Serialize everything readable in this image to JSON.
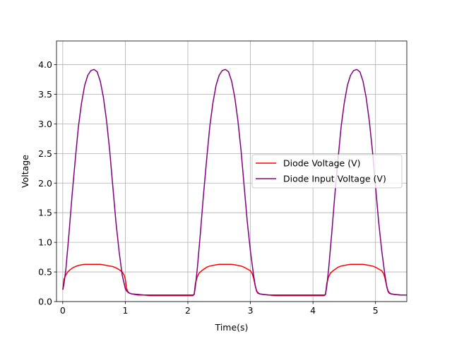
{
  "chart_data": {
    "type": "line",
    "title": "",
    "xlabel": "Time(s)",
    "ylabel": "Voltage",
    "xlim": [
      -0.1,
      5.5
    ],
    "ylim": [
      0.0,
      4.4
    ],
    "grid": true,
    "legend_position": "center-right",
    "x_ticks": [
      0,
      1,
      2,
      3,
      4,
      5
    ],
    "x_tick_labels": [
      "0",
      "1",
      "2",
      "3",
      "4",
      "5"
    ],
    "y_ticks": [
      0.0,
      0.5,
      1.0,
      1.5,
      2.0,
      2.5,
      3.0,
      3.5,
      4.0
    ],
    "y_tick_labels": [
      "0.0",
      "0.5",
      "1.0",
      "1.5",
      "2.0",
      "2.5",
      "3.0",
      "3.5",
      "4.0"
    ],
    "series": [
      {
        "name": "Diode Voltage (V)",
        "color": "#ff0000",
        "x": [
          0.0,
          0.02,
          0.05,
          0.08,
          0.12,
          0.16,
          0.2,
          0.25,
          0.3,
          0.35,
          0.4,
          0.45,
          0.5,
          0.55,
          0.6,
          0.65,
          0.7,
          0.75,
          0.8,
          0.85,
          0.9,
          0.95,
          0.98,
          1.0,
          1.02,
          1.05,
          1.1,
          1.2,
          1.3,
          1.4,
          1.5,
          1.6,
          1.7,
          1.8,
          1.9,
          2.0,
          2.08,
          2.1,
          2.12,
          2.15,
          2.18,
          2.22,
          2.26,
          2.3,
          2.35,
          2.4,
          2.45,
          2.5,
          2.55,
          2.6,
          2.65,
          2.7,
          2.75,
          2.8,
          2.85,
          2.9,
          2.95,
          3.0,
          3.03,
          3.05,
          3.08,
          3.1,
          3.12,
          3.15,
          3.2,
          3.3,
          3.4,
          3.5,
          3.6,
          3.7,
          3.8,
          3.9,
          4.0,
          4.1,
          4.18,
          4.2,
          4.22,
          4.25,
          4.28,
          4.32,
          4.36,
          4.4,
          4.45,
          4.5,
          4.55,
          4.6,
          4.65,
          4.7,
          4.75,
          4.8,
          4.85,
          4.9,
          4.95,
          5.0,
          5.05,
          5.1,
          5.13,
          5.15,
          5.18,
          5.2,
          5.22,
          5.25,
          5.3,
          5.4,
          5.5
        ],
        "y": [
          0.2,
          0.38,
          0.45,
          0.5,
          0.54,
          0.57,
          0.59,
          0.61,
          0.62,
          0.63,
          0.63,
          0.63,
          0.63,
          0.63,
          0.63,
          0.62,
          0.61,
          0.6,
          0.59,
          0.57,
          0.54,
          0.5,
          0.45,
          0.38,
          0.22,
          0.15,
          0.13,
          0.11,
          0.11,
          0.1,
          0.1,
          0.1,
          0.1,
          0.1,
          0.1,
          0.1,
          0.1,
          0.12,
          0.3,
          0.42,
          0.48,
          0.52,
          0.55,
          0.58,
          0.6,
          0.61,
          0.62,
          0.63,
          0.63,
          0.63,
          0.63,
          0.63,
          0.62,
          0.61,
          0.6,
          0.58,
          0.55,
          0.52,
          0.47,
          0.4,
          0.25,
          0.17,
          0.14,
          0.13,
          0.12,
          0.11,
          0.1,
          0.1,
          0.1,
          0.1,
          0.1,
          0.1,
          0.1,
          0.1,
          0.1,
          0.12,
          0.3,
          0.42,
          0.48,
          0.52,
          0.55,
          0.58,
          0.6,
          0.61,
          0.62,
          0.63,
          0.63,
          0.63,
          0.63,
          0.63,
          0.62,
          0.61,
          0.6,
          0.58,
          0.55,
          0.52,
          0.47,
          0.4,
          0.25,
          0.17,
          0.14,
          0.13,
          0.12,
          0.11,
          0.11
        ]
      },
      {
        "name": "Diode Input Voltage (V)",
        "color": "#800080",
        "x": [
          0.0,
          0.02,
          0.05,
          0.1,
          0.15,
          0.2,
          0.25,
          0.3,
          0.35,
          0.4,
          0.45,
          0.5,
          0.55,
          0.6,
          0.65,
          0.7,
          0.75,
          0.8,
          0.85,
          0.9,
          0.95,
          1.0,
          1.02,
          1.05,
          1.1,
          1.2,
          1.3,
          1.4,
          1.5,
          1.6,
          1.7,
          1.8,
          1.9,
          2.0,
          2.08,
          2.1,
          2.12,
          2.15,
          2.2,
          2.25,
          2.3,
          2.35,
          2.4,
          2.45,
          2.5,
          2.55,
          2.6,
          2.65,
          2.7,
          2.75,
          2.8,
          2.85,
          2.9,
          2.95,
          3.0,
          3.05,
          3.08,
          3.1,
          3.12,
          3.15,
          3.2,
          3.3,
          3.4,
          3.5,
          3.6,
          3.7,
          3.8,
          3.9,
          4.0,
          4.1,
          4.18,
          4.2,
          4.22,
          4.25,
          4.3,
          4.35,
          4.4,
          4.45,
          4.5,
          4.55,
          4.6,
          4.65,
          4.7,
          4.75,
          4.8,
          4.85,
          4.9,
          4.95,
          5.0,
          5.05,
          5.1,
          5.15,
          5.18,
          5.2,
          5.22,
          5.25,
          5.3,
          5.4,
          5.5
        ],
        "y": [
          0.2,
          0.3,
          0.55,
          1.15,
          1.8,
          2.4,
          2.95,
          3.35,
          3.65,
          3.82,
          3.9,
          3.92,
          3.88,
          3.72,
          3.45,
          3.05,
          2.55,
          1.95,
          1.35,
          0.85,
          0.45,
          0.22,
          0.18,
          0.15,
          0.13,
          0.12,
          0.11,
          0.11,
          0.11,
          0.11,
          0.11,
          0.11,
          0.11,
          0.11,
          0.11,
          0.12,
          0.25,
          0.55,
          1.15,
          1.8,
          2.4,
          2.95,
          3.35,
          3.65,
          3.82,
          3.9,
          3.92,
          3.88,
          3.72,
          3.45,
          3.05,
          2.55,
          1.95,
          1.35,
          0.85,
          0.45,
          0.25,
          0.18,
          0.15,
          0.13,
          0.12,
          0.11,
          0.11,
          0.11,
          0.11,
          0.11,
          0.11,
          0.11,
          0.11,
          0.11,
          0.11,
          0.12,
          0.25,
          0.55,
          1.15,
          1.8,
          2.4,
          2.95,
          3.35,
          3.65,
          3.82,
          3.9,
          3.92,
          3.88,
          3.72,
          3.45,
          3.05,
          2.55,
          1.95,
          1.35,
          0.85,
          0.45,
          0.25,
          0.18,
          0.15,
          0.13,
          0.12,
          0.11,
          0.11
        ]
      }
    ]
  }
}
